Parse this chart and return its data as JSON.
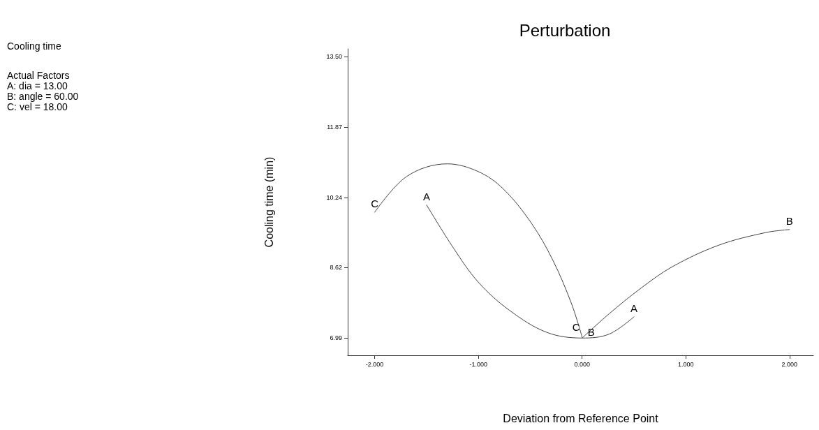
{
  "chart_data": {
    "type": "line",
    "title": "Perturbation",
    "xlabel": "Deviation from Reference Point",
    "ylabel": "Cooling time (min)",
    "annotations": [
      "Cooling time",
      "Actual Factors\nA: dia = 13.00\nB: angle = 60.00\nC: vel = 18.00"
    ],
    "xlim": [
      -2.26,
      2.23
    ],
    "ylim": [
      6.59,
      13.68
    ],
    "xticks": [
      {
        "value": -2,
        "label": "-2.000"
      },
      {
        "value": -1,
        "label": "-1.000"
      },
      {
        "value": 0,
        "label": "0.000"
      },
      {
        "value": 1,
        "label": "1.000"
      },
      {
        "value": 2,
        "label": "2.000"
      }
    ],
    "yticks": [
      {
        "value": 6.99,
        "label": "6.99"
      },
      {
        "value": 8.62,
        "label": "8.62"
      },
      {
        "value": 10.24,
        "label": "10.24"
      },
      {
        "value": 11.87,
        "label": "11.87"
      },
      {
        "value": 13.5,
        "label": "13.50"
      }
    ],
    "grid": false,
    "legend": false,
    "marker": "none",
    "line_style": "solid",
    "series": [
      {
        "name": "A",
        "color": "#404040",
        "x": [
          -1.5,
          -1.24,
          -1.0,
          -0.7,
          -0.34,
          0,
          0.26,
          0.5
        ],
        "values": [
          10.07,
          9.07,
          8.28,
          7.63,
          7.12,
          6.99,
          7.08,
          7.48
        ]
      },
      {
        "name": "B",
        "color": "#404040",
        "x": [
          0,
          0.26,
          0.56,
          0.87,
          1.32,
          1.77,
          2.0
        ],
        "values": [
          6.99,
          7.55,
          8.13,
          8.64,
          9.14,
          9.43,
          9.5
        ]
      },
      {
        "name": "C",
        "color": "#404040",
        "x": [
          -2.0,
          -1.69,
          -1.3,
          -1.0,
          -0.76,
          -0.49,
          -0.28,
          -0.1,
          0
        ],
        "values": [
          9.9,
          10.73,
          11.02,
          10.84,
          10.44,
          9.65,
          8.78,
          7.77,
          7.01
        ]
      }
    ]
  }
}
